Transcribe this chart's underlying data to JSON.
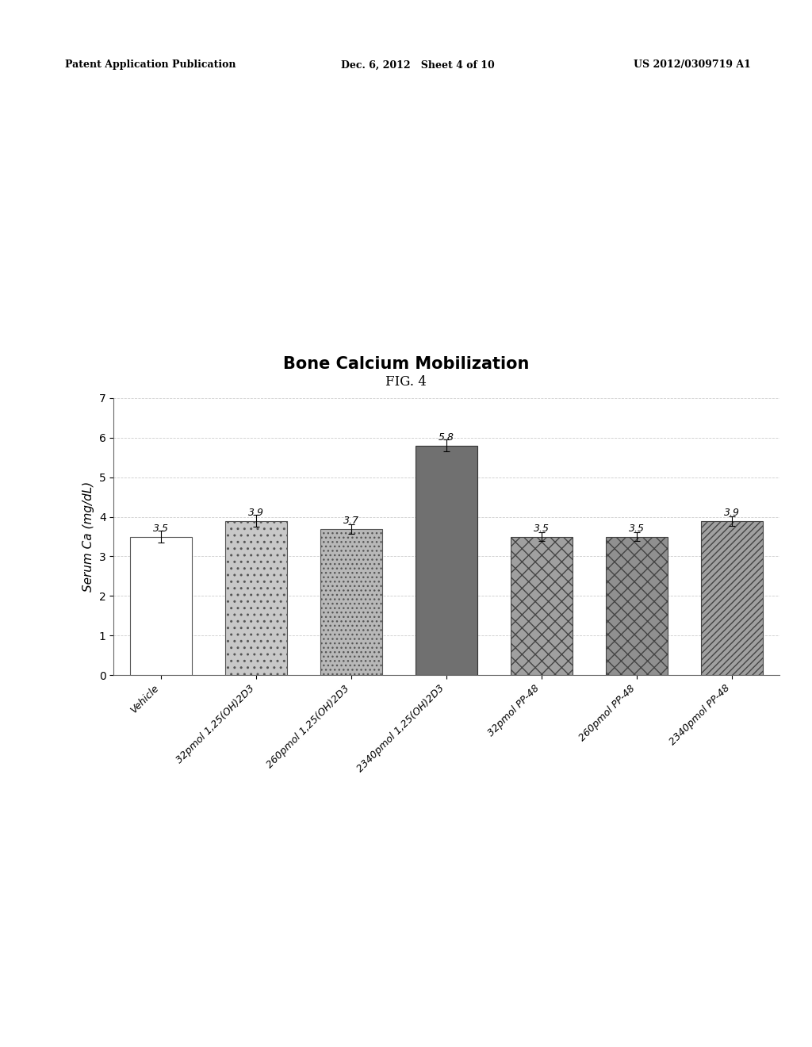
{
  "title": "Bone Calcium Mobilization",
  "fig_label": "FIG. 4",
  "ylabel": "Serum Ca (mg/dL)",
  "ylim": [
    0,
    7
  ],
  "yticks": [
    0,
    1,
    2,
    3,
    4,
    5,
    6,
    7
  ],
  "categories": [
    "Vehicle",
    "32pmol 1,25(OH)2D3",
    "260pmol 1,25(OH)2D3",
    "2340pmol 1,25(OH)2D3",
    "32pmol PP-48",
    "260pmol PP-48",
    "2340pmol PP-48"
  ],
  "values": [
    3.5,
    3.9,
    3.7,
    5.8,
    3.5,
    3.5,
    3.9
  ],
  "bar_facecolors": [
    "#ffffff",
    "#c8c8c8",
    "#b8b8b8",
    "#707070",
    "#a0a0a0",
    "#909090",
    "#a0a0a0"
  ],
  "bar_edgecolors": [
    "#555555",
    "#555555",
    "#555555",
    "#333333",
    "#444444",
    "#444444",
    "#444444"
  ],
  "value_labels": [
    "3.5",
    "3.9",
    "3.7",
    "5.8",
    "3.5",
    "3.5",
    "3.9"
  ],
  "header_left": "Patent Application Publication",
  "header_mid": "Dec. 6, 2012   Sheet 4 of 10",
  "header_right": "US 2012/0309719 A1",
  "background_color": "#ffffff",
  "err_vals": [
    0.15,
    0.15,
    0.12,
    0.15,
    0.12,
    0.12,
    0.12
  ]
}
